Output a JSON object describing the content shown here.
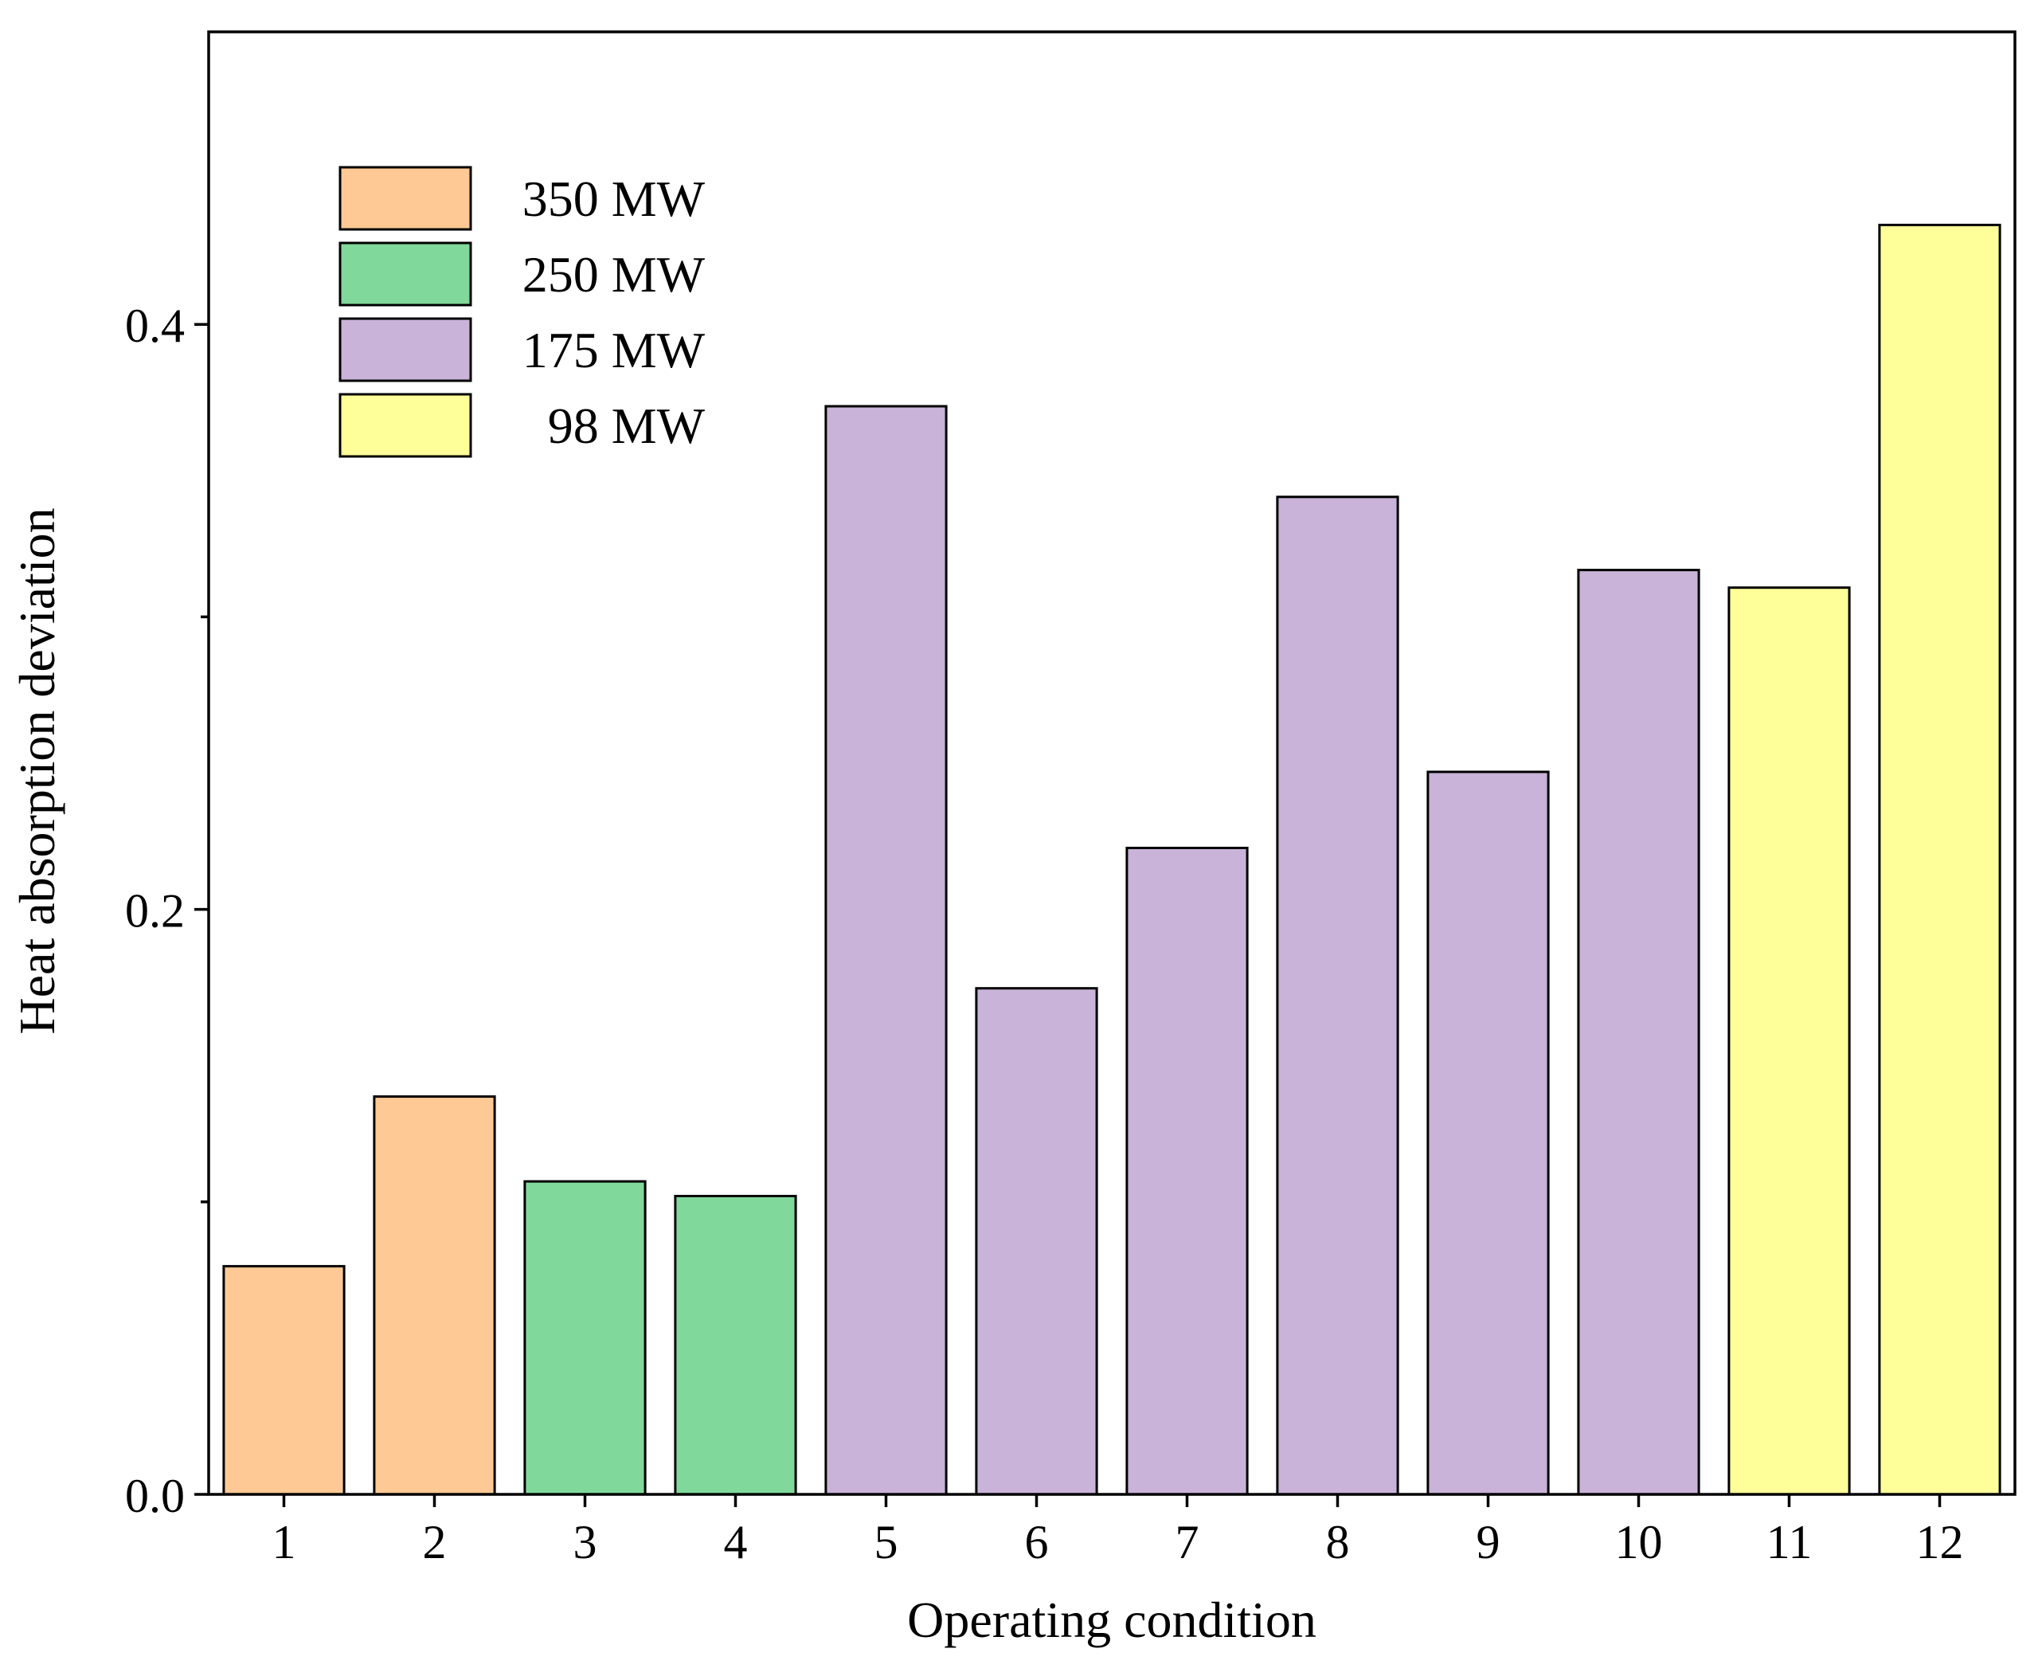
{
  "chart_data": {
    "type": "bar",
    "xlabel": "Operating condition",
    "ylabel": "Heat absorption deviation",
    "ylim": [
      0,
      0.5
    ],
    "yticks": [
      0.0,
      0.2,
      0.4
    ],
    "yticklabels": [
      "0.0",
      "0.2",
      "0.4"
    ],
    "y_minor_ticks": [
      0.1,
      0.3
    ],
    "categories": [
      "1",
      "2",
      "3",
      "4",
      "5",
      "6",
      "7",
      "8",
      "9",
      "10",
      "11",
      "12"
    ],
    "values": [
      0.078,
      0.136,
      0.107,
      0.102,
      0.372,
      0.173,
      0.221,
      0.341,
      0.247,
      0.316,
      0.31,
      0.434
    ],
    "bar_groups": [
      "350 MW",
      "350 MW",
      "250 MW",
      "250 MW",
      "175 MW",
      "175 MW",
      "175 MW",
      "175 MW",
      "175 MW",
      "175 MW",
      "98 MW",
      "98 MW"
    ],
    "legend": {
      "placement": "top-left",
      "entries": [
        {
          "label": "350 MW",
          "color": "#FEC994"
        },
        {
          "label": "250 MW",
          "color": "#80D99A"
        },
        {
          "label": "175 MW",
          "color": "#C9B3D8"
        },
        {
          "label": "98 MW",
          "color": "#FFFF99"
        }
      ]
    },
    "grid": false
  }
}
